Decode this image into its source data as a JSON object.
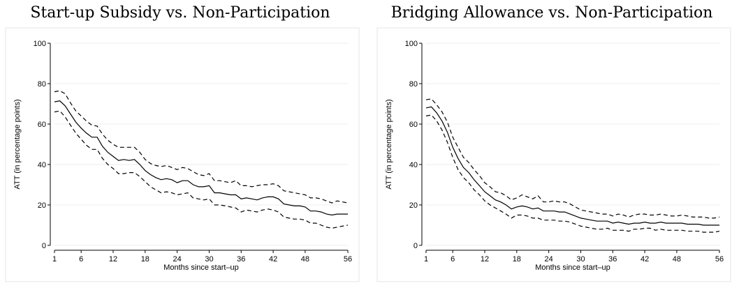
{
  "chart_data": [
    {
      "type": "line",
      "title": "Start-up Subsidy vs. Non-Participation",
      "xlabel": "Months since start–up",
      "ylabel": "ATT (in percentage points)",
      "xticks": [
        1,
        6,
        12,
        18,
        24,
        30,
        36,
        42,
        48,
        56
      ],
      "yticks": [
        0,
        20,
        40,
        60,
        80,
        100
      ],
      "xlim": [
        1,
        56
      ],
      "ylim": [
        0,
        100
      ],
      "grid": true,
      "x": [
        1,
        2,
        3,
        4,
        5,
        6,
        7,
        8,
        9,
        10,
        11,
        12,
        13,
        14,
        15,
        16,
        17,
        18,
        19,
        20,
        21,
        22,
        23,
        24,
        25,
        26,
        27,
        28,
        29,
        30,
        31,
        32,
        33,
        34,
        35,
        36,
        37,
        38,
        39,
        40,
        41,
        42,
        43,
        44,
        45,
        46,
        47,
        48,
        49,
        50,
        51,
        52,
        53,
        54,
        55,
        56
      ],
      "series": [
        {
          "style": "solid",
          "values": [
            71,
            71.5,
            69,
            65,
            61,
            58,
            55.5,
            53.5,
            53.5,
            49,
            46,
            44,
            42,
            42.5,
            42,
            42.5,
            40,
            37,
            35,
            33.5,
            32.5,
            33,
            32.5,
            31,
            32,
            32,
            30,
            29,
            29,
            29.5,
            26,
            26,
            25.5,
            25,
            25,
            23,
            23.5,
            23,
            22.5,
            23.5,
            24,
            24,
            23,
            20.5,
            20,
            19.5,
            19.5,
            19,
            17,
            17,
            16.5,
            15.5,
            15,
            15.5,
            15.5,
            15.5
          ]
        },
        {
          "style": "dashed",
          "values": [
            76,
            76.5,
            75,
            70.5,
            66.5,
            64,
            61.5,
            59.5,
            59,
            55,
            52,
            50,
            48.5,
            48.5,
            48.5,
            48.5,
            46,
            42.5,
            40.5,
            39.5,
            39,
            39.5,
            38.5,
            37.5,
            38.5,
            38,
            36.5,
            35,
            34.5,
            35.5,
            32,
            32,
            31.5,
            31,
            32,
            29.5,
            29.5,
            29,
            29.5,
            30,
            30,
            30.5,
            29.5,
            27,
            26.5,
            26,
            25.5,
            25,
            23.5,
            23.5,
            23,
            22,
            21,
            22,
            21.5,
            21
          ]
        },
        {
          "style": "dashed",
          "values": [
            66,
            66.5,
            63.5,
            59.5,
            55.5,
            52.5,
            49.5,
            47.5,
            47.5,
            43,
            40,
            38,
            35.5,
            35.5,
            36,
            36,
            34,
            31.5,
            29,
            27.5,
            26,
            26.5,
            26,
            25,
            25.5,
            26,
            23.5,
            23,
            22.5,
            23,
            20,
            20,
            19.5,
            19,
            18.5,
            16.5,
            17.5,
            17,
            16.5,
            17.5,
            18,
            17.5,
            16.5,
            14,
            13.5,
            13,
            13,
            12.5,
            11,
            11,
            10,
            9,
            8.5,
            9,
            9.5,
            10
          ]
        }
      ]
    },
    {
      "type": "line",
      "title": "Bridging Allowance vs. Non-Participation",
      "xlabel": "Months since start–up",
      "ylabel": "ATT (in percentage points)",
      "xticks": [
        1,
        6,
        12,
        18,
        24,
        30,
        36,
        42,
        48,
        56
      ],
      "yticks": [
        0,
        20,
        40,
        60,
        80,
        100
      ],
      "xlim": [
        1,
        56
      ],
      "ylim": [
        0,
        100
      ],
      "grid": true,
      "x": [
        1,
        2,
        3,
        4,
        5,
        6,
        7,
        8,
        9,
        10,
        11,
        12,
        13,
        14,
        15,
        16,
        17,
        18,
        19,
        20,
        21,
        22,
        23,
        24,
        25,
        26,
        27,
        28,
        29,
        30,
        31,
        32,
        33,
        34,
        35,
        36,
        37,
        38,
        39,
        40,
        41,
        42,
        43,
        44,
        45,
        46,
        47,
        48,
        49,
        50,
        51,
        52,
        53,
        54,
        55,
        56
      ],
      "series": [
        {
          "style": "solid",
          "values": [
            68,
            68.5,
            65.5,
            61.5,
            56,
            48.5,
            43,
            38.5,
            36,
            32.5,
            29.5,
            26.5,
            24.5,
            22.5,
            21.5,
            20,
            18,
            19,
            19.5,
            19,
            18,
            18.5,
            17,
            17,
            17,
            16.5,
            16.5,
            15.5,
            14.5,
            13.5,
            13,
            12.5,
            12,
            12,
            12,
            11,
            11.5,
            11,
            10.5,
            11,
            11,
            11.5,
            11,
            11,
            11.5,
            11,
            11,
            11,
            11,
            10.5,
            10.5,
            10.5,
            10,
            10,
            10,
            10
          ]
        },
        {
          "style": "dashed",
          "values": [
            72,
            72.5,
            69.5,
            66,
            61,
            53.5,
            48.5,
            43.5,
            41,
            37.5,
            34.5,
            31,
            29,
            26.5,
            26,
            24.5,
            22.5,
            23.5,
            25,
            24,
            23,
            24.5,
            21.5,
            21.5,
            22,
            21.5,
            21.5,
            20.5,
            19,
            17.5,
            17,
            16.5,
            16,
            15.5,
            15.5,
            14.5,
            15.5,
            15,
            14,
            15,
            15.5,
            15.5,
            15,
            15,
            15.5,
            15,
            14.5,
            14.5,
            15,
            14.5,
            14,
            14,
            14,
            13.5,
            13.5,
            14
          ]
        },
        {
          "style": "dashed",
          "values": [
            64,
            64.5,
            61.5,
            57,
            51,
            43.5,
            37.5,
            33.5,
            31,
            27.5,
            25,
            22,
            20,
            18.5,
            17,
            15.5,
            13.5,
            15,
            15,
            14.5,
            13.5,
            13.5,
            12.5,
            12.5,
            12.5,
            12,
            12,
            11.5,
            10.5,
            9.5,
            9,
            8.5,
            8,
            8,
            8.5,
            7.5,
            7.5,
            7.5,
            7,
            8,
            8,
            8.5,
            8.5,
            7.5,
            8,
            7.5,
            7.5,
            7.5,
            7.5,
            7,
            7,
            7,
            6.5,
            6.5,
            6.5,
            7
          ]
        }
      ]
    }
  ]
}
